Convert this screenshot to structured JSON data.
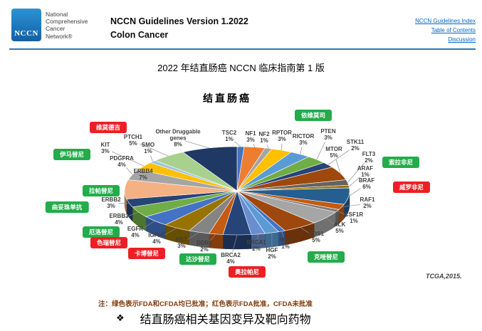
{
  "header": {
    "logo_text": "NCCN",
    "brand_lines": [
      "National",
      "Comprehensive",
      "Cancer",
      "Network®"
    ],
    "title_line1": "NCCN Guidelines Version 1.2022",
    "title_line2": "Colon Cancer",
    "links": [
      "NCCN Guidelines Index",
      "Table of Contents",
      "Discussion"
    ]
  },
  "subtitle": "2022 年结直肠癌 NCCN 临床指南第 1 版",
  "chart_data": {
    "type": "pie",
    "style": "3d-pie",
    "title": "结直肠癌",
    "source": "TCGA,2015.",
    "start": "top",
    "direction": "clockwise",
    "legend_note": "注：绿色表示FDA和CFDA均已批准；红色表示FDA批准，CFDA未批准",
    "slices": [
      {
        "gene": "TSC2",
        "value": 1,
        "color": "#4472C4"
      },
      {
        "gene": "NF1",
        "value": 3,
        "color": "#ED7D31"
      },
      {
        "gene": "NF2",
        "value": 1,
        "color": "#A5A5A5"
      },
      {
        "gene": "RPTOR",
        "value": 3,
        "color": "#FFC000"
      },
      {
        "gene": "RICTOR",
        "value": 3,
        "color": "#5B9BD5"
      },
      {
        "gene": "PTEN",
        "value": 3,
        "color": "#70AD47"
      },
      {
        "gene": "STK11",
        "value": 2,
        "color": "#264478"
      },
      {
        "gene": "MTOR",
        "value": 5,
        "color": "#9E480E"
      },
      {
        "gene": "FLT3",
        "value": 2,
        "color": "#636363"
      },
      {
        "gene": "ARAF",
        "value": 1,
        "color": "#997300"
      },
      {
        "gene": "BRAF",
        "value": 6,
        "color": "#255E91"
      },
      {
        "gene": "RAF1",
        "value": 2,
        "color": "#C55A11"
      },
      {
        "gene": "CSF1R",
        "value": 1,
        "color": "#7B7B7B"
      },
      {
        "gene": "ALK",
        "value": 5,
        "color": "#A5A5A5"
      },
      {
        "gene": "ROS1",
        "value": 5,
        "color": "#9E480E"
      },
      {
        "gene": "MET",
        "value": 1,
        "color": "#4472C4"
      },
      {
        "gene": "HGF",
        "value": 2,
        "color": "#5B9BD5"
      },
      {
        "gene": "BRCA1",
        "value": 2,
        "color": "#698ED0"
      },
      {
        "gene": "BRCA2",
        "value": 4,
        "color": "#264478"
      },
      {
        "gene": "DDR2",
        "value": 2,
        "color": "#C55A11"
      },
      {
        "gene": "RET",
        "value": 3,
        "color": "#848484"
      },
      {
        "gene": "IGF1R",
        "value": 4,
        "color": "#997300"
      },
      {
        "gene": "EGFR",
        "value": 4,
        "color": "#4472C4"
      },
      {
        "gene": "ERBB3",
        "value": 4,
        "color": "#70AD47"
      },
      {
        "gene": "ERBB2",
        "value": 3,
        "color": "#264478"
      },
      {
        "gene": "ERBB4",
        "value": 7,
        "color": "#F4B183"
      },
      {
        "gene": "PDGFRA",
        "value": 4,
        "color": "#A5A5A5"
      },
      {
        "gene": "KIT",
        "value": 3,
        "color": "#FFC000"
      },
      {
        "gene": "SMO",
        "value": 1,
        "color": "#9DC3E6"
      },
      {
        "gene": "PTCH1",
        "value": 5,
        "color": "#A9D18E"
      },
      {
        "gene": "Other Druggable genes",
        "value": 8,
        "color": "#1F3864"
      }
    ],
    "drugs": [
      {
        "name": "依维莫司",
        "status": "green"
      },
      {
        "name": "维莫德吉",
        "status": "red"
      },
      {
        "name": "伊马替尼",
        "status": "green"
      },
      {
        "name": "索拉非尼",
        "status": "green"
      },
      {
        "name": "威罗非尼",
        "status": "red"
      },
      {
        "name": "拉帕替尼",
        "status": "green"
      },
      {
        "name": "曲妥珠单抗",
        "status": "green"
      },
      {
        "name": "厄洛替尼",
        "status": "green"
      },
      {
        "name": "色瑞替尼",
        "status": "red"
      },
      {
        "name": "卡博替尼",
        "status": "red"
      },
      {
        "name": "达沙替尼",
        "status": "green"
      },
      {
        "name": "奥拉帕尼",
        "status": "red"
      },
      {
        "name": "克唑替尼",
        "status": "green"
      }
    ]
  },
  "footer": {
    "bullet": "❖",
    "caption": "结直肠癌相关基因变异及靶向药物"
  },
  "colors": {
    "green": "#22AC4A",
    "red": "#EC2024",
    "rule_blue": "#2E74B5",
    "link_blue": "#0563C1",
    "logo_blue": "#1B75BC",
    "note_brown": "#843C0C"
  }
}
